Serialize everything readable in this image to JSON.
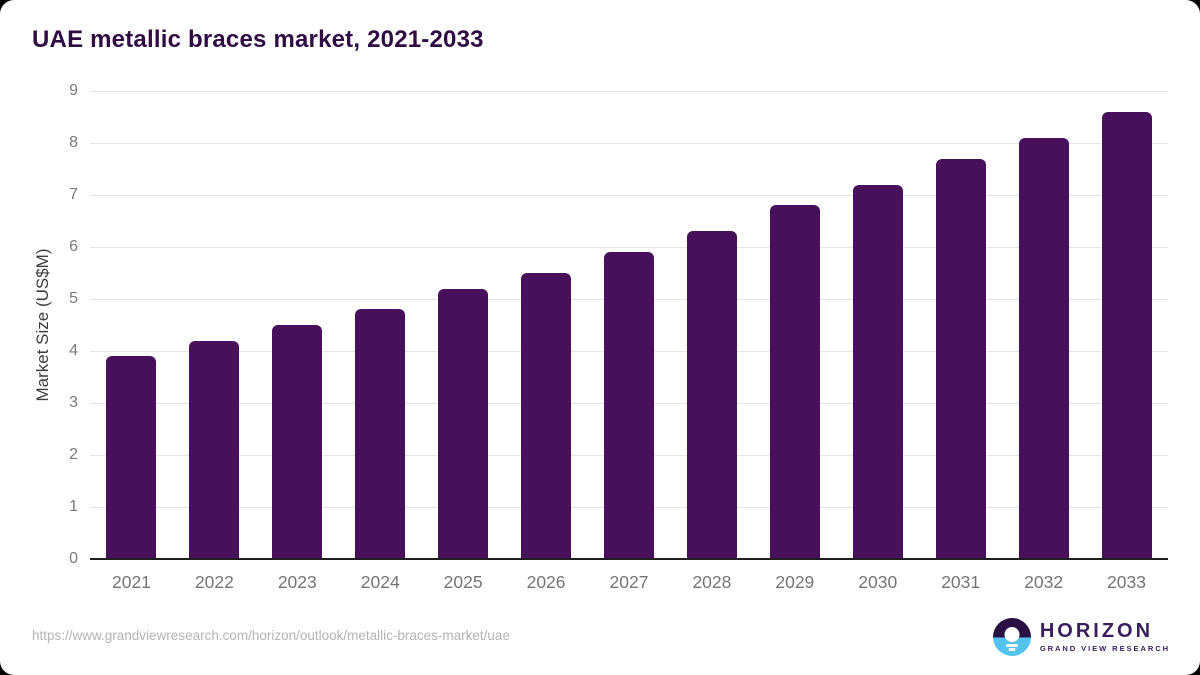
{
  "page": {
    "background_color": "#000000",
    "card_background_color": "#ffffff"
  },
  "header": {
    "title": "UAE metallic braces market, 2021-2033",
    "title_color": "#2f0c44"
  },
  "chart_data": {
    "type": "bar",
    "title": "UAE metallic braces market, 2021-2033",
    "categories": [
      "2021",
      "2022",
      "2023",
      "2024",
      "2025",
      "2026",
      "2027",
      "2028",
      "2029",
      "2030",
      "2031",
      "2032",
      "2033"
    ],
    "values": [
      3.9,
      4.2,
      4.5,
      4.8,
      5.2,
      5.5,
      5.9,
      6.3,
      6.8,
      7.2,
      7.7,
      8.1,
      8.6
    ],
    "xlabel": "",
    "ylabel": "Market Size (US$M)",
    "ylim": [
      0,
      9
    ],
    "ytick_step": 1,
    "yticks": [
      0,
      1,
      2,
      3,
      4,
      5,
      6,
      7,
      8,
      9
    ],
    "grid": true,
    "legend": "none",
    "bar_color": "#48105a",
    "gridline_color": "#e5e5e5",
    "axis_line_color": "#1f1f1f",
    "tick_label_color": "#7b7b7b"
  },
  "footer": {
    "source_url": "https://www.grandviewresearch.com/horizon/outlook/metallic-braces-market/uae",
    "logo": {
      "name": "HORIZON",
      "subtitle": "GRAND VIEW RESEARCH",
      "icon": "horizon-sun-over-water-icon",
      "purple": "#3a1e5f",
      "blue": "#55c3f0"
    }
  }
}
